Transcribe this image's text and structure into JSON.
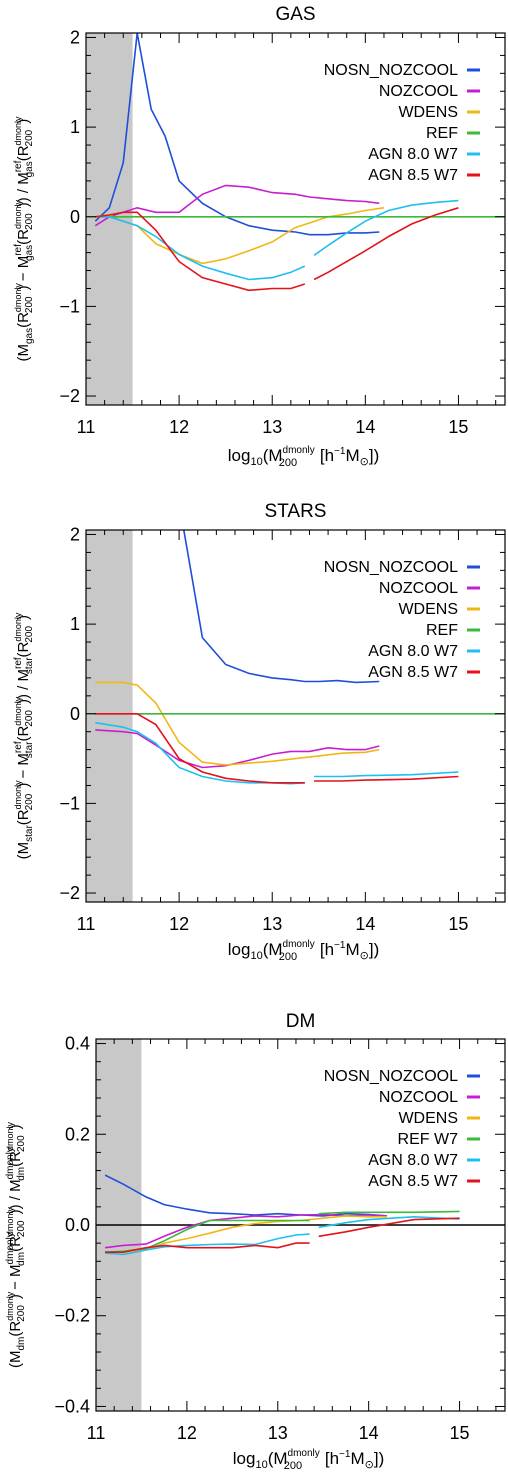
{
  "colors": {
    "nosn_nozcool": "#1f4fd8",
    "nozcool": "#c61fd0",
    "wdens": "#f2b614",
    "ref": "#3cb93c",
    "agn80": "#1fbfef",
    "agn85": "#e4121c",
    "shade": "#c8c8c8",
    "axis": "#000000"
  },
  "chart_data": [
    {
      "type": "line",
      "title": "GAS",
      "xlabel": "log10(M200^dmonly [h^-1 M⊙])",
      "ylabel": "(Mgas(R200^dmonly) − Mgas^ref(R200^dmonly)) / Mgas^ref(R200^dmonly)",
      "xlim": [
        11.0,
        15.5
      ],
      "ylim": [
        -2.1,
        2.05
      ],
      "xticks": [
        11,
        12,
        13,
        14,
        15
      ],
      "xtick_labels": [
        "11",
        "12",
        "13",
        "14",
        "15"
      ],
      "yticks": [
        -2,
        -1,
        0,
        1,
        2
      ],
      "ytick_labels": [
        "−2",
        "−1",
        "0",
        "1",
        "2"
      ],
      "shade_range": [
        11.0,
        11.5
      ],
      "reference_line": 0,
      "legend_position": "top-right",
      "series": [
        {
          "name": "NOSN_NOZCOOL",
          "color_key": "nosn_nozcool",
          "x": [
            11.1,
            11.25,
            11.4,
            11.55,
            11.7,
            11.85,
            12.0,
            12.25,
            12.5,
            12.75,
            13.0,
            13.25,
            13.4,
            13.6,
            13.8,
            14.0,
            14.15
          ],
          "y": [
            -0.05,
            0.1,
            0.6,
            2.05,
            1.2,
            0.9,
            0.4,
            0.15,
            0.0,
            -0.1,
            -0.15,
            -0.17,
            -0.2,
            -0.2,
            -0.18,
            -0.18,
            -0.17
          ]
        },
        {
          "name": "NOZCOOL",
          "color_key": "nozcool",
          "x": [
            11.1,
            11.25,
            11.4,
            11.55,
            11.75,
            12.0,
            12.25,
            12.5,
            12.75,
            13.0,
            13.25,
            13.4,
            13.6,
            13.8,
            14.0,
            14.15
          ],
          "y": [
            -0.1,
            0.0,
            0.05,
            0.1,
            0.05,
            0.05,
            0.25,
            0.35,
            0.33,
            0.27,
            0.25,
            0.22,
            0.2,
            0.18,
            0.17,
            0.15
          ]
        },
        {
          "name": "WDENS",
          "color_key": "wdens",
          "x": [
            11.1,
            11.25,
            11.4,
            11.55,
            11.75,
            12.0,
            12.25,
            12.5,
            12.75,
            13.0,
            13.25,
            13.4,
            13.6,
            13.8,
            14.0,
            14.2
          ],
          "y": [
            0.0,
            0.02,
            -0.05,
            -0.1,
            -0.3,
            -0.42,
            -0.52,
            -0.47,
            -0.38,
            -0.28,
            -0.12,
            -0.07,
            0.0,
            0.03,
            0.07,
            0.1
          ]
        },
        {
          "name": "REF",
          "color_key": "ref",
          "x": [
            11.1,
            15.5
          ],
          "y": [
            0.0,
            0.0
          ]
        },
        {
          "name": "AGN 8.0 W7",
          "color_key": "agn80",
          "x": [
            11.1,
            11.25,
            11.4,
            11.55,
            11.75,
            12.0,
            12.25,
            12.5,
            12.75,
            13.0,
            13.2,
            13.35,
            null,
            13.45,
            13.6,
            13.8,
            14.0,
            14.25,
            14.5,
            14.75,
            15.0
          ],
          "y": [
            0.0,
            0.0,
            -0.05,
            -0.1,
            -0.22,
            -0.42,
            -0.55,
            -0.63,
            -0.7,
            -0.68,
            -0.62,
            -0.55,
            null,
            -0.43,
            -0.32,
            -0.18,
            -0.05,
            0.07,
            0.13,
            0.16,
            0.18
          ]
        },
        {
          "name": "AGN 8.5 W7",
          "color_key": "agn85",
          "x": [
            11.1,
            11.25,
            11.4,
            11.55,
            11.75,
            12.0,
            12.25,
            12.5,
            12.75,
            13.0,
            13.2,
            13.35,
            null,
            13.45,
            13.6,
            13.8,
            14.0,
            14.25,
            14.5,
            14.75,
            15.0
          ],
          "y": [
            0.0,
            0.02,
            0.05,
            0.05,
            -0.15,
            -0.5,
            -0.68,
            -0.75,
            -0.82,
            -0.8,
            -0.8,
            -0.75,
            null,
            -0.7,
            -0.62,
            -0.5,
            -0.38,
            -0.22,
            -0.08,
            0.02,
            0.1
          ]
        }
      ]
    },
    {
      "type": "line",
      "title": "STARS",
      "xlabel": "log10(M200^dmonly [h^-1 M⊙])",
      "ylabel": "(Mstar(R200^dmonly) − Mstar^ref(R200^dmonly)) / Mstar^ref(R200^dmonly)",
      "xlim": [
        11.0,
        15.5
      ],
      "ylim": [
        -2.1,
        2.05
      ],
      "xticks": [
        11,
        12,
        13,
        14,
        15
      ],
      "xtick_labels": [
        "11",
        "12",
        "13",
        "14",
        "15"
      ],
      "yticks": [
        -2,
        -1,
        0,
        1,
        2
      ],
      "ytick_labels": [
        "−2",
        "−1",
        "0",
        "1",
        "2"
      ],
      "shade_range": [
        11.0,
        11.5
      ],
      "reference_line": 0,
      "legend_position": "top-right",
      "series": [
        {
          "name": "NOSN_NOZCOOL",
          "color_key": "nosn_nozcool",
          "x": [
            12.05,
            12.25,
            12.5,
            12.75,
            13.0,
            13.2,
            13.35,
            13.5,
            13.7,
            13.9,
            14.15
          ],
          "y": [
            2.05,
            0.85,
            0.55,
            0.45,
            0.4,
            0.38,
            0.36,
            0.36,
            0.37,
            0.35,
            0.36
          ]
        },
        {
          "name": "NOZCOOL",
          "color_key": "nozcool",
          "x": [
            11.1,
            11.4,
            11.55,
            11.75,
            12.0,
            12.25,
            12.5,
            12.75,
            13.0,
            13.2,
            13.4,
            13.6,
            13.8,
            14.0,
            14.15
          ],
          "y": [
            -0.18,
            -0.2,
            -0.22,
            -0.35,
            -0.52,
            -0.6,
            -0.58,
            -0.52,
            -0.45,
            -0.42,
            -0.42,
            -0.38,
            -0.4,
            -0.4,
            -0.36
          ]
        },
        {
          "name": "WDENS",
          "color_key": "wdens",
          "x": [
            11.1,
            11.4,
            11.55,
            11.75,
            12.0,
            12.25,
            12.5,
            12.75,
            13.0,
            13.25,
            13.5,
            13.75,
            14.0,
            14.15
          ],
          "y": [
            0.35,
            0.35,
            0.32,
            0.12,
            -0.32,
            -0.54,
            -0.57,
            -0.55,
            -0.53,
            -0.5,
            -0.47,
            -0.44,
            -0.43,
            -0.4
          ]
        },
        {
          "name": "REF",
          "color_key": "ref",
          "x": [
            11.1,
            15.5
          ],
          "y": [
            0.0,
            0.0
          ]
        },
        {
          "name": "AGN 8.0 W7",
          "color_key": "agn80",
          "x": [
            11.1,
            11.4,
            11.55,
            11.75,
            12.0,
            12.25,
            12.5,
            12.75,
            13.0,
            13.2,
            13.35,
            null,
            13.45,
            13.75,
            14.0,
            14.5,
            15.0
          ],
          "y": [
            -0.1,
            -0.15,
            -0.2,
            -0.33,
            -0.6,
            -0.7,
            -0.75,
            -0.77,
            -0.77,
            -0.78,
            -0.77,
            null,
            -0.7,
            -0.7,
            -0.69,
            -0.68,
            -0.65
          ]
        },
        {
          "name": "AGN 8.5 W7",
          "color_key": "agn85",
          "x": [
            11.1,
            11.4,
            11.55,
            11.75,
            12.0,
            12.25,
            12.5,
            12.75,
            13.0,
            13.2,
            13.35,
            null,
            13.45,
            13.75,
            14.0,
            14.5,
            15.0
          ],
          "y": [
            0.0,
            0.0,
            0.0,
            -0.12,
            -0.5,
            -0.65,
            -0.72,
            -0.75,
            -0.77,
            -0.77,
            -0.77,
            null,
            -0.75,
            -0.75,
            -0.74,
            -0.73,
            -0.7
          ]
        }
      ]
    },
    {
      "type": "line",
      "title": "DM",
      "xlabel": "log10(M200^dmonly [h^-1 M⊙])",
      "ylabel": "(Mdm(R200^dmonly) − Mdm^dmonly(R200^dmonly)) / Mdm^dmonly(R200^dmonly)",
      "xlim": [
        11.0,
        15.5
      ],
      "ylim": [
        -0.41,
        0.41
      ],
      "xticks": [
        11,
        12,
        13,
        14,
        15
      ],
      "xtick_labels": [
        "11",
        "12",
        "13",
        "14",
        "15"
      ],
      "yticks": [
        -0.4,
        -0.2,
        0.0,
        0.2,
        0.4
      ],
      "ytick_labels": [
        "−0.4",
        "−0.2",
        "0.0",
        "0.2",
        "0.4"
      ],
      "shade_range": [
        11.0,
        11.5
      ],
      "reference_line": 0,
      "legend_position": "top-right",
      "series": [
        {
          "name": "NOSN_NOZCOOL",
          "color_key": "nosn_nozcool",
          "x": [
            11.1,
            11.3,
            11.55,
            11.75,
            12.0,
            12.25,
            12.5,
            12.75,
            13.0,
            13.25,
            13.5,
            13.75,
            14.0,
            14.2
          ],
          "y": [
            0.11,
            0.09,
            0.062,
            0.045,
            0.035,
            0.027,
            0.025,
            0.022,
            0.025,
            0.022,
            0.02,
            0.025,
            0.023,
            0.02
          ]
        },
        {
          "name": "NOZCOOL",
          "color_key": "nozcool",
          "x": [
            11.1,
            11.3,
            11.55,
            11.75,
            12.0,
            12.25,
            12.5,
            12.75,
            13.0,
            13.25,
            13.5,
            13.75,
            14.0,
            14.2
          ],
          "y": [
            -0.05,
            -0.045,
            -0.042,
            -0.025,
            -0.005,
            0.01,
            0.015,
            0.02,
            0.018,
            0.022,
            0.023,
            0.02,
            0.022,
            0.02
          ]
        },
        {
          "name": "WDENS",
          "color_key": "wdens",
          "x": [
            11.1,
            11.3,
            11.55,
            11.75,
            12.0,
            12.25,
            12.5,
            12.75,
            13.0,
            13.25,
            13.5,
            13.75,
            14.0,
            14.2
          ],
          "y": [
            -0.06,
            -0.06,
            -0.055,
            -0.04,
            -0.03,
            -0.018,
            -0.005,
            0.003,
            0.008,
            0.01,
            0.015,
            0.02,
            0.018,
            0.018
          ]
        },
        {
          "name": "REF W7",
          "color_key": "ref",
          "x": [
            11.1,
            11.3,
            11.55,
            11.75,
            12.0,
            12.25,
            12.5,
            12.75,
            13.0,
            13.25,
            13.35,
            null,
            13.45,
            13.75,
            14.0,
            14.5,
            15.0
          ],
          "y": [
            -0.06,
            -0.058,
            -0.052,
            -0.035,
            -0.01,
            0.01,
            0.01,
            0.01,
            0.01,
            0.01,
            0.01,
            null,
            0.025,
            0.028,
            0.028,
            0.028,
            0.03
          ]
        },
        {
          "name": "AGN 8.0 W7",
          "color_key": "agn80",
          "x": [
            11.1,
            11.3,
            11.55,
            11.75,
            12.0,
            12.25,
            12.5,
            12.75,
            13.0,
            13.2,
            13.35,
            null,
            13.45,
            13.75,
            14.0,
            14.5,
            15.0
          ],
          "y": [
            -0.062,
            -0.065,
            -0.055,
            -0.048,
            -0.045,
            -0.043,
            -0.042,
            -0.043,
            -0.03,
            -0.022,
            -0.02,
            null,
            -0.005,
            0.005,
            0.012,
            0.018,
            0.013
          ]
        },
        {
          "name": "AGN 8.5 W7",
          "color_key": "agn85",
          "x": [
            11.1,
            11.3,
            11.55,
            11.75,
            12.0,
            12.25,
            12.5,
            12.75,
            13.0,
            13.2,
            13.35,
            null,
            13.45,
            13.75,
            14.0,
            14.5,
            15.0
          ],
          "y": [
            -0.06,
            -0.06,
            -0.05,
            -0.045,
            -0.05,
            -0.05,
            -0.05,
            -0.045,
            -0.05,
            -0.04,
            -0.04,
            null,
            -0.025,
            -0.015,
            -0.005,
            0.012,
            0.015
          ]
        }
      ]
    }
  ]
}
